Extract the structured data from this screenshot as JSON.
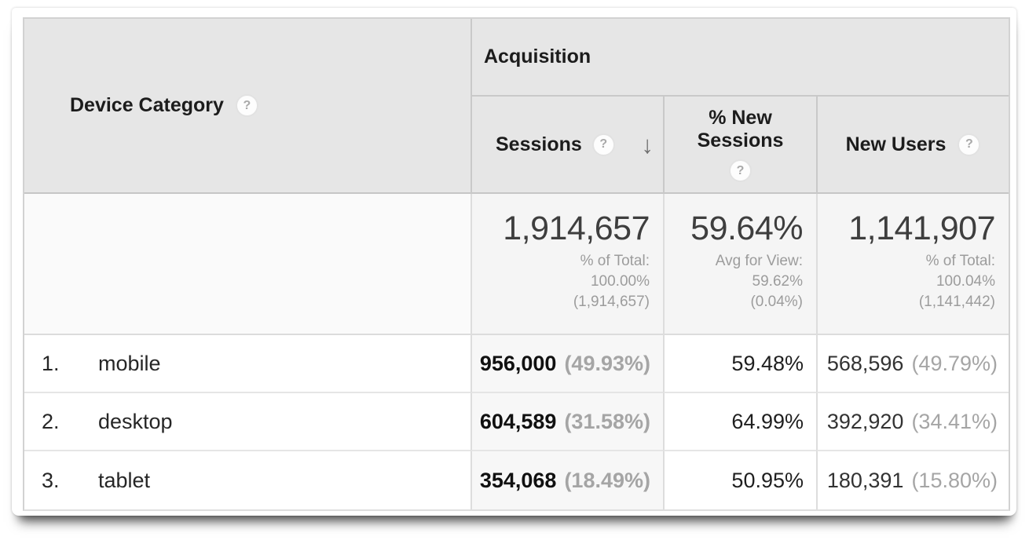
{
  "icons": {
    "help": "?",
    "sort_desc": "↓"
  },
  "colors": {
    "header_bg": "#e6e6e6",
    "summary_bg": "#f5f5f5",
    "sorted_column_bg": "#f7f7f7",
    "muted_text": "#9c9c9c",
    "border": "#d2d2d2"
  },
  "table": {
    "dimension_header": {
      "label": "Device Category"
    },
    "group_header": {
      "label": "Acquisition"
    },
    "metric_headers": {
      "sessions": {
        "label": "Sessions",
        "sort": "descending"
      },
      "new_sessions": {
        "label": "% New Sessions"
      },
      "new_users": {
        "label": "New Users"
      }
    },
    "summary": {
      "sessions": {
        "value": "1,914,657",
        "line1": "% of Total:",
        "line2": "100.00%",
        "line3": "(1,914,657)"
      },
      "new_sessions": {
        "value": "59.64%",
        "line1": "Avg for View:",
        "line2": "59.62%",
        "line3": "(0.04%)"
      },
      "new_users": {
        "value": "1,141,907",
        "line1": "% of Total:",
        "line2": "100.04%",
        "line3": "(1,141,442)"
      }
    },
    "rows": [
      {
        "rank": "1.",
        "device": "mobile",
        "sessions": "956,000",
        "sessions_share": "(49.93%)",
        "new_sessions_pct": "59.48%",
        "new_users": "568,596",
        "new_users_share": "(49.79%)"
      },
      {
        "rank": "2.",
        "device": "desktop",
        "sessions": "604,589",
        "sessions_share": "(31.58%)",
        "new_sessions_pct": "64.99%",
        "new_users": "392,920",
        "new_users_share": "(34.41%)"
      },
      {
        "rank": "3.",
        "device": "tablet",
        "sessions": "354,068",
        "sessions_share": "(18.49%)",
        "new_sessions_pct": "50.95%",
        "new_users": "180,391",
        "new_users_share": "(15.80%)"
      }
    ]
  }
}
